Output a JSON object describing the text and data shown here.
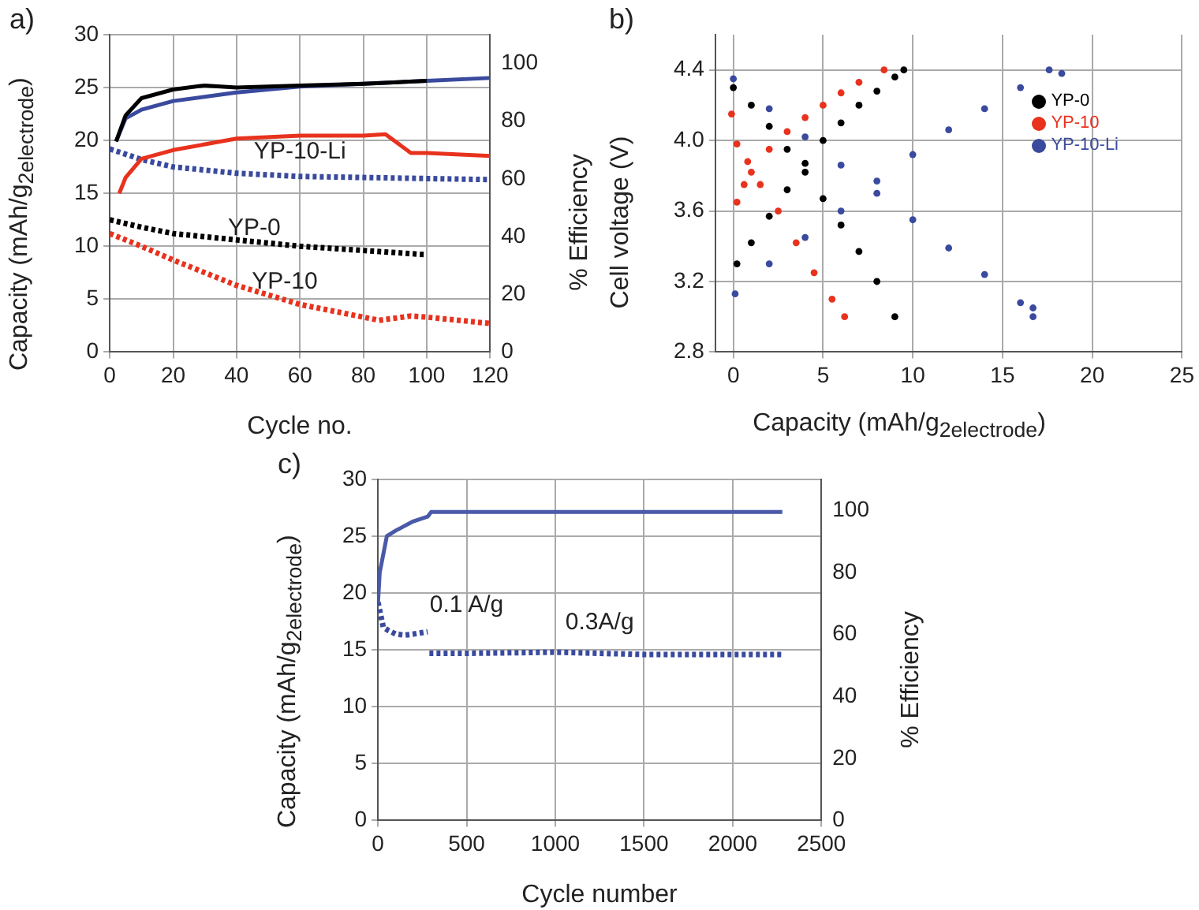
{
  "chart_data": [
    {
      "type": "line",
      "title": "a)",
      "xlabel": "Cycle no.",
      "ylabel": "Capacity (mAh/g$_{2electrode}$)",
      "y2label": "% Efficiency",
      "xlim": [
        0,
        120
      ],
      "xticks": [
        0,
        20,
        40,
        60,
        80,
        100,
        120
      ],
      "ylim": [
        0,
        30
      ],
      "yticks": [
        0,
        5,
        10,
        15,
        20,
        25,
        30
      ],
      "y2lim": [
        0,
        110
      ],
      "y2ticks": [
        0,
        20,
        40,
        60,
        80,
        100
      ],
      "grid": true,
      "series": [
        {
          "color": "#000000",
          "axis": "y2",
          "x": [
            2,
            5,
            10,
            20,
            30,
            40,
            60,
            80,
            100
          ],
          "values": [
            73,
            82,
            88,
            91,
            92.4,
            91.7,
            92.4,
            93,
            94
          ]
        },
        {
          "color": "#3a4a9e",
          "axis": "y2",
          "x": [
            2,
            5,
            10,
            20,
            40,
            60,
            80,
            100,
            120
          ],
          "values": [
            73,
            81,
            84,
            87,
            90,
            92,
            93,
            94,
            95
          ]
        },
        {
          "color": "#e8321e",
          "axis": "y2",
          "x": [
            3,
            5,
            10,
            20,
            30,
            40,
            60,
            80,
            87,
            95,
            100,
            120
          ],
          "values": [
            55,
            60.5,
            67,
            70,
            72,
            74,
            75,
            75,
            75.5,
            69,
            69,
            68
          ]
        },
        {
          "color": "#3a4a9e",
          "line_style": "dotted",
          "x": [
            0,
            10,
            20,
            40,
            60,
            80,
            100,
            120
          ],
          "values": [
            19.2,
            18.2,
            17.5,
            16.9,
            16.6,
            16.5,
            16.4,
            16.3
          ]
        },
        {
          "color": "#000000",
          "line_style": "dotted",
          "x": [
            0,
            10,
            20,
            40,
            60,
            80,
            100
          ],
          "values": [
            12.5,
            11.8,
            11.2,
            10.6,
            10.0,
            9.6,
            9.2
          ]
        },
        {
          "color": "#e8321e",
          "line_style": "dotted",
          "x": [
            0,
            10,
            20,
            40,
            60,
            85,
            95,
            100,
            120
          ],
          "values": [
            11.2,
            10.0,
            8.7,
            6.3,
            4.5,
            3.0,
            3.4,
            3.3,
            2.7
          ]
        }
      ],
      "annotations": [
        "YP-10-Li",
        "YP-0",
        "YP-10"
      ]
    },
    {
      "type": "scatter",
      "title": "b)",
      "xlabel": "Capacity (mAh/g$_{2electrode}$)",
      "ylabel": "Cell voltage (V)",
      "xlim": [
        -1,
        25
      ],
      "xticks": [
        0,
        5,
        10,
        15,
        20,
        25
      ],
      "ylim": [
        2.8,
        4.6
      ],
      "yticks": [
        {
          "value": 2.8,
          "label": "2.8"
        },
        3.2,
        3.6,
        {
          "value": 4,
          "label": "4.0"
        },
        4.4
      ],
      "grid": true,
      "legend": "top right",
      "marker": "circle",
      "series": [
        {
          "name": "YP-0",
          "color": "#000000",
          "x": [
            0.2,
            1,
            2,
            3,
            4,
            5,
            6,
            7,
            8,
            9,
            9.5,
            0,
            1,
            2,
            3,
            4,
            5,
            6,
            7,
            8,
            9
          ],
          "values": [
            3.3,
            3.42,
            3.57,
            3.72,
            3.87,
            4.0,
            4.1,
            4.2,
            4.28,
            4.36,
            4.4,
            4.3,
            4.2,
            4.08,
            3.95,
            3.82,
            3.67,
            3.52,
            3.37,
            3.2,
            3.0
          ]
        },
        {
          "name": "YP-10",
          "color": "#e8321e",
          "x": [
            0.2,
            0.6,
            1,
            2,
            3,
            4,
            5,
            6,
            7,
            8.4,
            -0.1,
            0.2,
            0.8,
            1.5,
            2.5,
            3.5,
            4.5,
            5.5,
            6.2
          ],
          "values": [
            3.65,
            3.75,
            3.82,
            3.95,
            4.05,
            4.13,
            4.2,
            4.27,
            4.33,
            4.4,
            4.15,
            3.98,
            3.88,
            3.75,
            3.6,
            3.42,
            3.25,
            3.1,
            3.0
          ]
        },
        {
          "name": "YP-10-Li",
          "color": "#3a4a9e",
          "x": [
            0.1,
            2,
            4,
            6,
            8,
            10,
            12,
            14,
            16,
            17.6,
            18.3,
            0,
            2,
            4,
            6,
            8,
            10,
            12,
            14,
            16,
            16.7,
            16.7
          ],
          "values": [
            3.13,
            3.3,
            3.45,
            3.6,
            3.77,
            3.92,
            4.06,
            4.18,
            4.3,
            4.4,
            4.38,
            4.35,
            4.18,
            4.02,
            3.86,
            3.7,
            3.55,
            3.39,
            3.24,
            3.08,
            3.0,
            3.05
          ]
        }
      ]
    },
    {
      "type": "line",
      "title": "c)",
      "xlabel": "Cycle number",
      "ylabel": "Capacity (mAh/g$_{2electrode}$)",
      "y2label": "% Efficiency",
      "xlim": [
        0,
        2500
      ],
      "xticks": [
        0,
        500,
        1000,
        1500,
        2000,
        2500
      ],
      "ylim": [
        0,
        30
      ],
      "yticks": [
        0,
        5,
        10,
        15,
        20,
        25,
        30
      ],
      "y2lim": [
        0,
        110
      ],
      "y2ticks": [
        0,
        20,
        40,
        60,
        80,
        100
      ],
      "grid": true,
      "series": [
        {
          "color": "#4a5aa8",
          "axis": "y2",
          "x": [
            0,
            10,
            50,
            100,
            200,
            280,
            300,
            1000,
            1500,
            2000,
            2280
          ],
          "values": [
            70,
            80,
            91.7,
            93.5,
            96.5,
            98,
            99.5,
            99.5,
            99.5,
            99.5,
            99.5
          ]
        },
        {
          "color": "#3a4a9e",
          "line_style": "dotted",
          "x": [
            0,
            30,
            60,
            100,
            150,
            200,
            280,
            285,
            290,
            500,
            1000,
            1500,
            2000,
            2280
          ],
          "values": [
            19.2,
            17.0,
            16.7,
            16.4,
            16.3,
            16.4,
            16.6,
            null,
            14.7,
            14.7,
            14.8,
            14.6,
            14.6,
            14.6
          ]
        }
      ],
      "annotations": [
        "0.1 A/g",
        "0.3A/g"
      ]
    }
  ]
}
